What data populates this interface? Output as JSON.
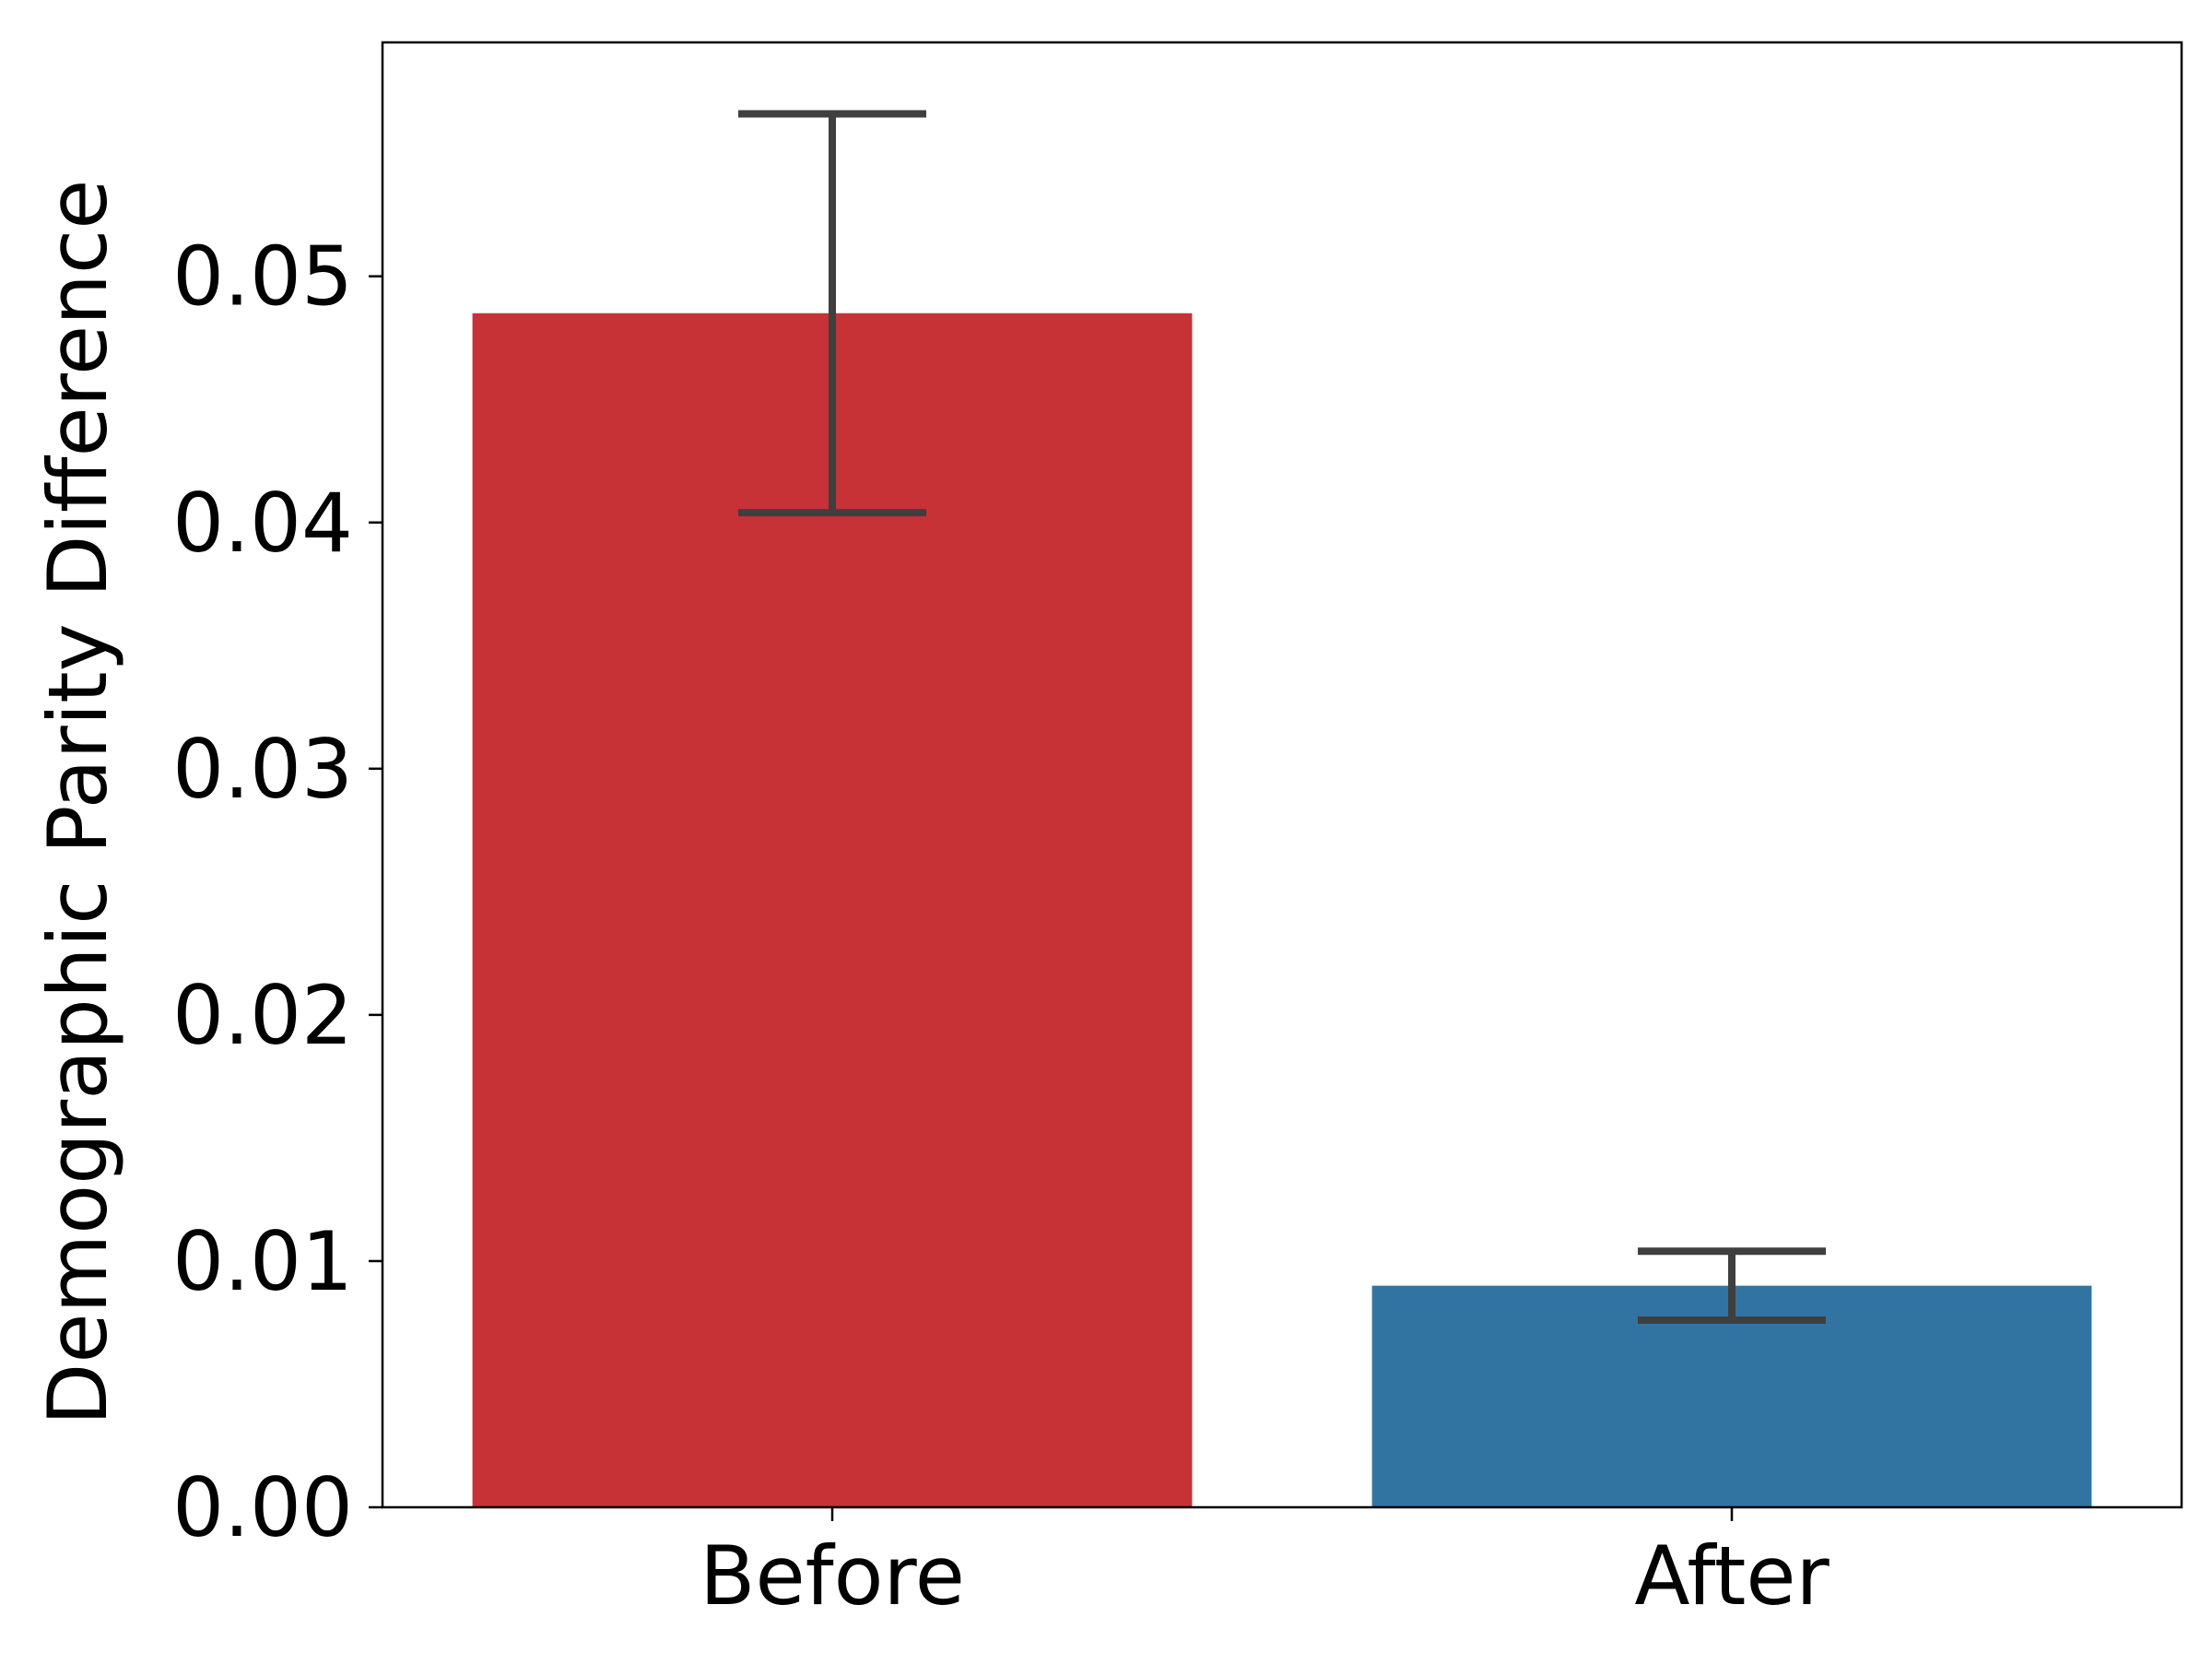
{
  "chart_data": {
    "type": "bar",
    "title": "",
    "xlabel": "",
    "ylabel": "Demographic Parity Difference",
    "categories": [
      "Before",
      "After"
    ],
    "values": [
      0.0485,
      0.009
    ],
    "error_low": [
      0.0404,
      0.0076
    ],
    "error_high": [
      0.0566,
      0.0104
    ],
    "colors": [
      "#c63235",
      "#3274a1"
    ],
    "errorbar_color": "#3f3f3f",
    "ylim": [
      0,
      0.0595
    ],
    "yticks": [
      0.0,
      0.01,
      0.02,
      0.03,
      0.04,
      0.05
    ],
    "ytick_labels": [
      "0.00",
      "0.01",
      "0.02",
      "0.03",
      "0.04",
      "0.05"
    ],
    "grid": false,
    "legend": "none"
  }
}
